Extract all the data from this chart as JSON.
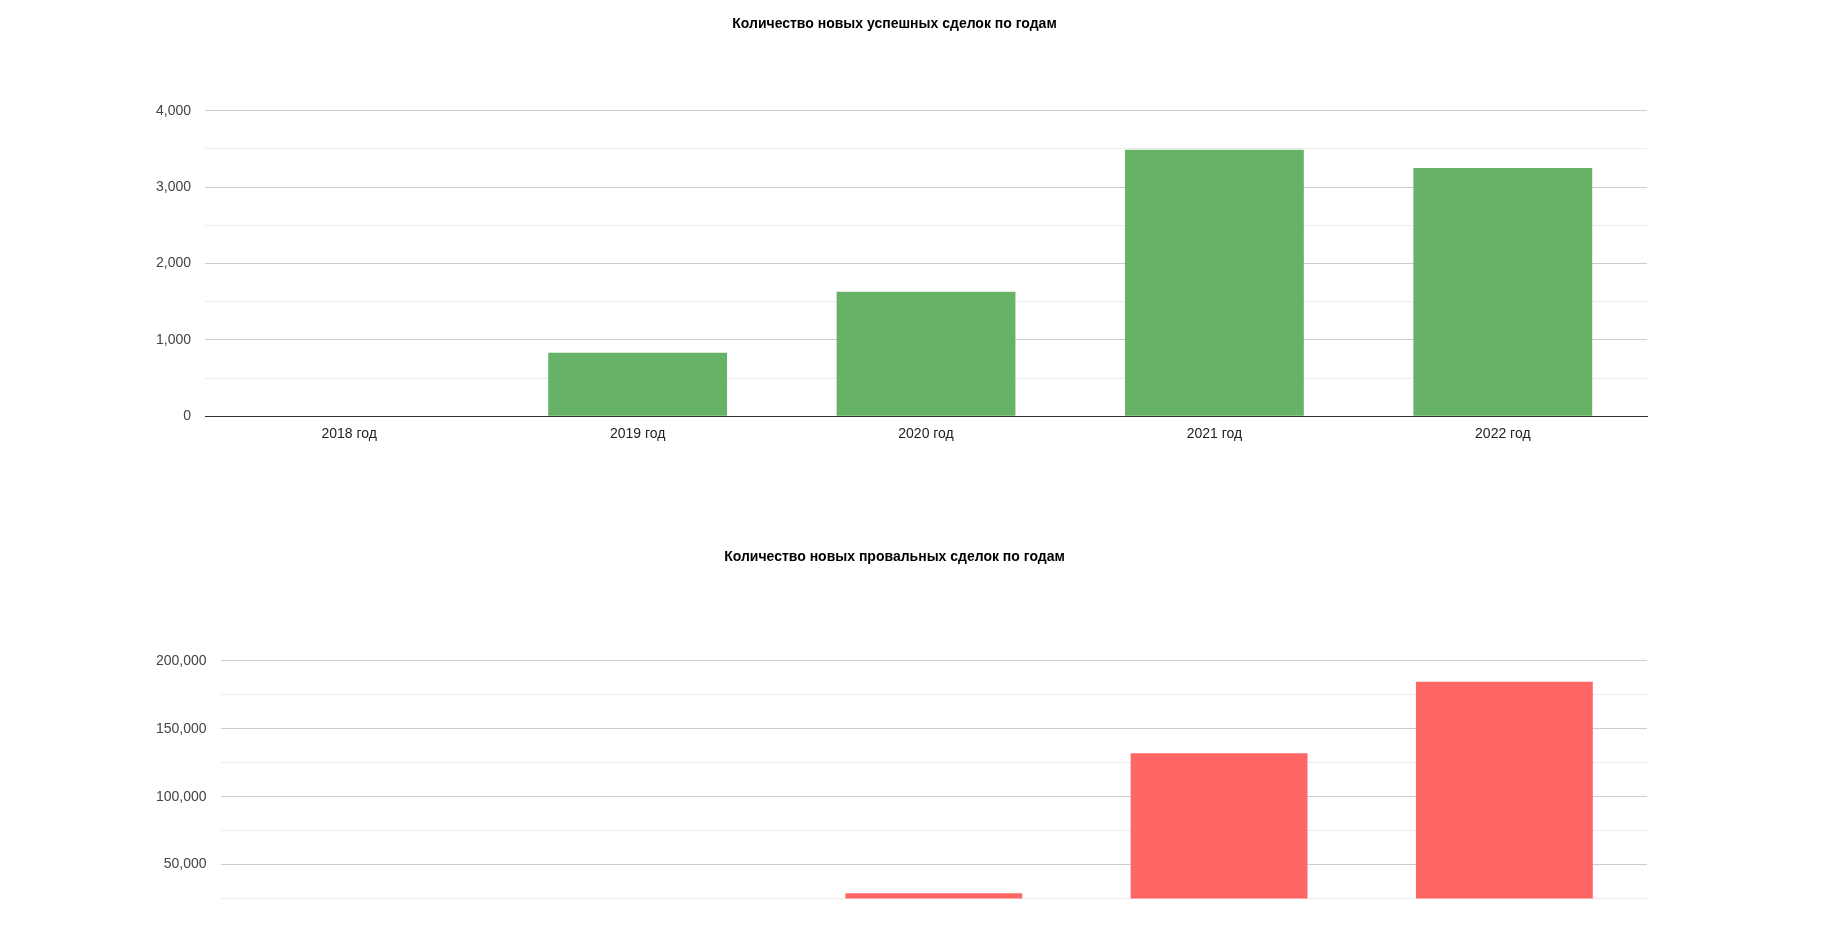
{
  "chart_data": [
    {
      "type": "bar",
      "title": "Количество новых успешных сделок по годам",
      "categories": [
        "2018 год",
        "2019 год",
        "2020 год",
        "2021 год",
        "2022 год"
      ],
      "values": [
        0,
        830,
        1630,
        3490,
        3250
      ],
      "color": "#66b266",
      "ylim": [
        0,
        4000
      ],
      "yticks": [
        0,
        {
          "value": 500,
          "label": null
        },
        {
          "value": 1000,
          "label": "1,000"
        },
        {
          "value": 1500,
          "label": null
        },
        {
          "value": 2000,
          "label": "2,000"
        },
        {
          "value": 2500,
          "label": null
        },
        {
          "value": 3000,
          "label": "3,000"
        },
        {
          "value": 3500,
          "label": null
        },
        {
          "value": 4000,
          "label": "4,000"
        }
      ],
      "grid": "y"
    },
    {
      "type": "bar",
      "title": "Количество новых провальных сделок по годам",
      "categories": [
        null,
        null,
        null,
        null,
        null
      ],
      "values": [
        null,
        null,
        29000,
        132000,
        184500
      ],
      "color": "#ff6666",
      "ylim": [
        25000,
        200000
      ],
      "yticks": [
        {
          "value": 25000,
          "label": null
        },
        {
          "value": 50000,
          "label": "50,000"
        },
        {
          "value": 75000,
          "label": null
        },
        {
          "value": 100000,
          "label": "100,000"
        },
        {
          "value": 125000,
          "label": null
        },
        {
          "value": 150000,
          "label": "150,000"
        },
        {
          "value": 175000,
          "label": null
        },
        {
          "value": 200000,
          "label": "200,000"
        }
      ],
      "grid": "y",
      "tick_labels": "y"
    }
  ]
}
